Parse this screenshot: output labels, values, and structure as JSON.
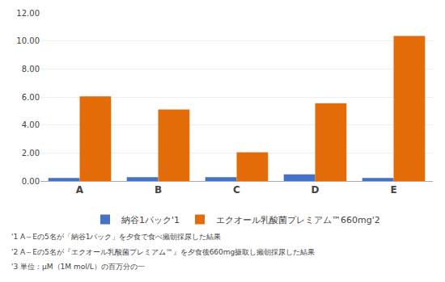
{
  "chart_data": {
    "type": "bar",
    "categories": [
      "A",
      "B",
      "C",
      "D",
      "E"
    ],
    "series": [
      {
        "name": "納谷1パック'1",
        "color": "#4472C4",
        "values": [
          0.22,
          0.28,
          0.28,
          0.47,
          0.22
        ]
      },
      {
        "name": "エクオール乳酸菌プレミアム™660mg'2",
        "color": "#E36C09",
        "values": [
          6.05,
          5.1,
          2.05,
          5.55,
          10.35
        ]
      }
    ],
    "ylim": [
      0,
      12.0
    ],
    "yticks": [
      {
        "value": 0.0,
        "label": "0.00"
      },
      {
        "value": 2.0,
        "label": "2.00"
      },
      {
        "value": 4.0,
        "label": "4.00"
      },
      {
        "value": 6.0,
        "label": "6.00"
      },
      {
        "value": 8.0,
        "label": "8.00"
      },
      {
        "value": 10.0,
        "label": "10.00"
      },
      {
        "value": 12.0,
        "label": "12.00"
      }
    ],
    "grid": true,
    "legend": "bottom",
    "annotations": [
      "'1 A～Eの5名が「納谷1パック」を夕食で食べ癩朝採尿した結果",
      "'2 A～Eの5名が『エクオール乳酸菌プレミアム™』を夕食後660mg摄取し癩朝採尿した結果",
      "'3 単位：μM（1M mol/L）の百万分の一"
    ]
  }
}
